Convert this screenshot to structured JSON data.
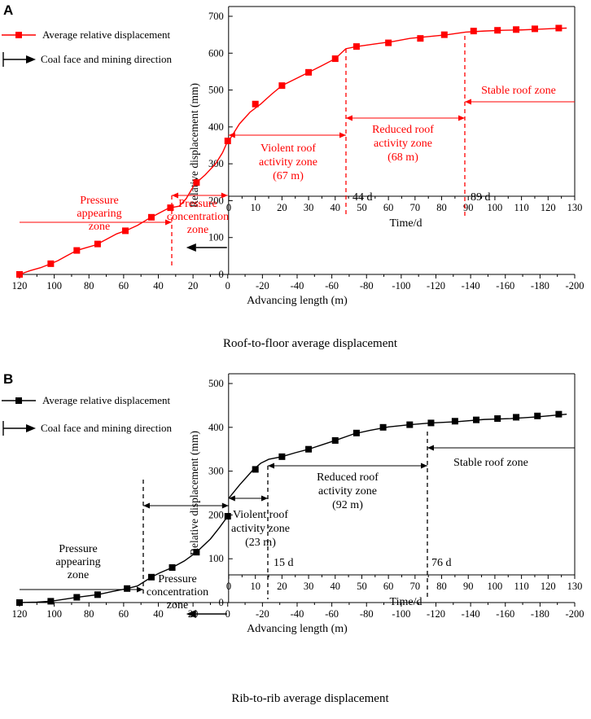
{
  "chart_data": [
    {
      "type": "line",
      "panel_label": "A",
      "caption": "Roof-to-floor average displacement",
      "color": "#ff0000",
      "legend": {
        "series": "Average relative displacement",
        "direction": "Coal face and mining direction"
      },
      "ylabel": "Relative displacement (mm)",
      "xlabel_bottom": "Advancing length (m)",
      "xlabel_top": "Time/d",
      "ylim": [
        0,
        700
      ],
      "yticks": [
        "0",
        "100",
        "200",
        "300",
        "400",
        "500",
        "600",
        "700"
      ],
      "xlim_bottom": [
        120,
        -200
      ],
      "xticks_bottom": [
        "120",
        "100",
        "80",
        "60",
        "40",
        "20",
        "0",
        "-20",
        "-40",
        "-60",
        "-80",
        "-100",
        "-120",
        "-140",
        "-160",
        "-180",
        "-200"
      ],
      "xticks_time": [
        "0",
        "10",
        "20",
        "30",
        "40",
        "50",
        "60",
        "70",
        "80",
        "90",
        "100",
        "110",
        "120",
        "130"
      ],
      "series_before": {
        "x_advance": [
          120,
          114,
          108,
          103,
          98,
          93,
          87,
          82,
          76,
          70,
          64,
          58,
          52,
          46,
          40,
          34,
          28,
          24,
          19,
          13,
          7,
          3,
          0
        ],
        "y": [
          0,
          10,
          18,
          27,
          37,
          50,
          65,
          72,
          80,
          95,
          110,
          120,
          133,
          150,
          165,
          180,
          185,
          205,
          245,
          270,
          300,
          330,
          362
        ]
      },
      "series_after": {
        "x_day": [
          0,
          4,
          8,
          12,
          16,
          20,
          25,
          30,
          35,
          40,
          44,
          48,
          55,
          62,
          68,
          75,
          82,
          89,
          96,
          103,
          110,
          117,
          123,
          127
        ],
        "y": [
          362,
          408,
          440,
          462,
          488,
          512,
          530,
          548,
          566,
          585,
          612,
          618,
          625,
          632,
          640,
          645,
          650,
          657,
          660,
          662,
          663,
          665,
          667,
          668
        ]
      },
      "markers": {
        "x_advance": [
          120,
          102,
          87,
          75,
          59,
          44,
          33,
          18,
          0
        ],
        "x_day": [
          10,
          20,
          30,
          40,
          48,
          60,
          72,
          81,
          92,
          101,
          108,
          115,
          124
        ],
        "y_day": [
          462,
          512,
          548,
          585,
          618,
          628,
          640,
          650,
          660,
          662,
          664,
          666,
          668
        ]
      },
      "annotations": {
        "violent": "Violent roof\nactivity zone\n(67 m)",
        "reduced": "Reduced roof\nactivity zone\n(68 m)",
        "stable": "Stable roof zone",
        "pressure_appearing": "Pressure\nappearing\nzone",
        "pressure_concentration": "Pressure\nconcentration\nzone",
        "day1": "44 d",
        "day2": "89 d"
      }
    },
    {
      "type": "line",
      "panel_label": "B",
      "caption": "Rib-to-rib average displacement",
      "color": "#000000",
      "legend": {
        "series": "Average relative displacement",
        "direction": "Coal face and mining direction"
      },
      "ylabel": "Relative displacement (mm)",
      "xlabel_bottom": "Advancing length (m)",
      "xlabel_top": "Time/d",
      "ylim": [
        0,
        500
      ],
      "yticks": [
        "0",
        "100",
        "200",
        "300",
        "400",
        "500"
      ],
      "xlim_bottom": [
        120,
        -200
      ],
      "xticks_bottom": [
        "120",
        "100",
        "80",
        "60",
        "40",
        "20",
        "0",
        "-20",
        "-40",
        "-60",
        "-80",
        "-100",
        "-120",
        "-140",
        "-160",
        "-180",
        "-200"
      ],
      "xticks_time": [
        "0",
        "10",
        "20",
        "30",
        "40",
        "50",
        "60",
        "70",
        "80",
        "90",
        "100",
        "110",
        "120",
        "130"
      ],
      "series_before": {
        "x_advance": [
          120,
          110,
          102,
          95,
          87,
          81,
          75,
          68,
          58,
          52,
          44,
          39,
          32,
          25,
          18,
          10,
          5,
          0
        ],
        "y": [
          0,
          1,
          3,
          7,
          12,
          15,
          18,
          24,
          32,
          38,
          58,
          68,
          80,
          95,
          115,
          145,
          170,
          197
        ]
      },
      "series_after": {
        "x_day": [
          0,
          4,
          9,
          12,
          15,
          20,
          25,
          30,
          35,
          40,
          47,
          53,
          60,
          68,
          76,
          86,
          96,
          106,
          116,
          127
        ],
        "y": [
          238,
          268,
          302,
          318,
          327,
          333,
          342,
          350,
          360,
          370,
          385,
          393,
          401,
          406,
          410,
          413,
          418,
          420,
          424,
          430
        ]
      },
      "markers": {
        "x_advance": [
          120,
          102,
          87,
          75,
          58,
          44,
          32,
          18,
          0
        ],
        "x_day": [
          10,
          20,
          30,
          40,
          48,
          58,
          68,
          76,
          85,
          93,
          101,
          108,
          116,
          124
        ],
        "y_day": [
          304,
          333,
          350,
          370,
          387,
          400,
          406,
          410,
          414,
          417,
          420,
          423,
          426,
          430
        ]
      },
      "annotations": {
        "violent": "Violent roof\nactivity zone\n(23 m)",
        "reduced": "Reduced roof\nactivity zone\n(92 m)",
        "stable": "Stable roof zone",
        "pressure_appearing": "Pressure\nappearing\nzone",
        "pressure_concentration": "Pressure\nconcentration\nzone",
        "day1": "15 d",
        "day2": "76 d"
      }
    }
  ]
}
